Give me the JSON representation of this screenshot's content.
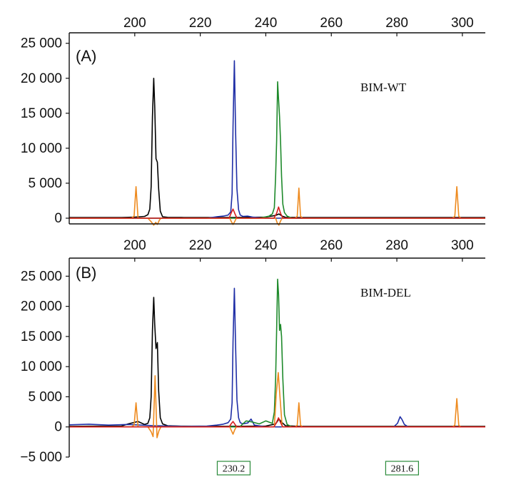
{
  "chart_data": [
    {
      "type": "line",
      "panel_label": "(A)",
      "sample_label": "BIM-WT",
      "xlabel": "",
      "ylabel": "",
      "xlim": [
        180,
        307
      ],
      "ylim": [
        0,
        26500
      ],
      "x_ticks": [
        200,
        220,
        240,
        260,
        280,
        300
      ],
      "x_tick_labels": [
        "200",
        "220",
        "240",
        "260",
        "280",
        "300"
      ],
      "y_ticks": [
        0,
        5000,
        10000,
        15000,
        20000,
        25000
      ],
      "y_tick_labels": [
        "0",
        "5 000",
        "10 000",
        "15 000",
        "20 000",
        "25 000"
      ],
      "grid": false,
      "series": [
        {
          "color": "#000000",
          "x": [
            180,
            196,
            200,
            203,
            204,
            204.6,
            205,
            205.4,
            205.8,
            206.1,
            206.5,
            206.9,
            207.3,
            207.8,
            208.5,
            210,
            215,
            230,
            240,
            243,
            244,
            245,
            246,
            250,
            307
          ],
          "y": [
            100,
            100,
            150,
            250,
            500,
            1300,
            4500,
            14500,
            20000,
            16000,
            8500,
            8000,
            4200,
            1000,
            200,
            120,
            100,
            100,
            150,
            400,
            600,
            300,
            120,
            100,
            100
          ]
        },
        {
          "color": "#1f2ea6",
          "x": [
            180,
            222,
            225,
            227,
            228.5,
            229.3,
            229.7,
            230,
            230.4,
            230.8,
            231.2,
            231.7,
            232.2,
            233,
            234.5,
            236,
            240,
            307
          ],
          "y": [
            0,
            0,
            200,
            300,
            450,
            900,
            3500,
            13000,
            22500,
            12000,
            4200,
            1200,
            450,
            250,
            300,
            150,
            0,
            0
          ]
        },
        {
          "color": "#1e8a2b",
          "x": [
            180,
            238,
            241,
            242,
            242.6,
            243,
            243.3,
            243.6,
            243.9,
            244.2,
            244.5,
            244.8,
            245.2,
            245.7,
            246.5,
            248,
            307
          ],
          "y": [
            0,
            0,
            300,
            600,
            1500,
            6000,
            11000,
            19500,
            17000,
            14500,
            11000,
            6000,
            2000,
            800,
            300,
            0,
            0
          ]
        },
        {
          "color": "#ee8a1e",
          "x": [
            180,
            199,
            199.8,
            200.4,
            201,
            204,
            205,
            205.8,
            206.4,
            206.9,
            207.5,
            208,
            229,
            229.5,
            230,
            230.5,
            231,
            243,
            243.5,
            244,
            244.5,
            245,
            249,
            249.6,
            250.1,
            250.6,
            251.2,
            297,
            297.7,
            298.3,
            298.9,
            299.5,
            307
          ],
          "y": [
            0,
            0,
            300,
            4500,
            0,
            0,
            -500,
            -1000,
            -600,
            -900,
            -300,
            0,
            0,
            -500,
            -900,
            -500,
            0,
            0,
            -700,
            -1000,
            -400,
            0,
            0,
            300,
            4300,
            300,
            0,
            0,
            300,
            4500,
            300,
            0,
            0
          ]
        },
        {
          "color": "#d81e1e",
          "x": [
            180,
            228.8,
            229.4,
            230,
            230.6,
            231.2,
            242.5,
            243.3,
            243.9,
            244.5,
            245.2,
            307
          ],
          "y": [
            0,
            0,
            700,
            1300,
            600,
            0,
            0,
            700,
            1600,
            700,
            0,
            0
          ]
        }
      ]
    },
    {
      "type": "line",
      "panel_label": "(B)",
      "sample_label": "BIM-DEL",
      "xlabel": "",
      "ylabel": "",
      "xlim": [
        180,
        307
      ],
      "ylim": [
        -5000,
        28000
      ],
      "x_ticks": [
        200,
        220,
        240,
        260,
        280,
        300
      ],
      "x_tick_labels": [
        "200",
        "220",
        "240",
        "260",
        "280",
        "300"
      ],
      "y_ticks": [
        -5000,
        0,
        5000,
        10000,
        15000,
        20000,
        25000
      ],
      "y_tick_labels": [
        "−5 000",
        "0",
        "5 000",
        "10 000",
        "15 000",
        "20 000",
        "25 000"
      ],
      "grid": false,
      "size_labels": [
        "230.2",
        "281.6"
      ],
      "size_label_x": [
        230.2,
        281.6
      ],
      "series": [
        {
          "color": "#000000",
          "x": [
            180,
            196,
            198,
            201,
            203,
            204,
            204.6,
            205,
            205.4,
            205.8,
            206.1,
            206.5,
            206.9,
            207.3,
            207.8,
            208.5,
            210,
            214,
            230,
            240,
            243,
            244,
            245,
            246,
            250,
            307
          ],
          "y": [
            100,
            150,
            500,
            900,
            400,
            600,
            1500,
            5000,
            16000,
            21500,
            17000,
            13000,
            14000,
            6000,
            1500,
            500,
            200,
            120,
            100,
            150,
            500,
            1300,
            700,
            200,
            100,
            100
          ]
        },
        {
          "color": "#1f2ea6",
          "x": [
            180,
            186,
            192,
            198,
            206,
            215,
            222,
            225,
            227,
            228.5,
            229.3,
            229.7,
            230,
            230.4,
            230.8,
            231.2,
            231.7,
            232.2,
            233,
            234.5,
            235.5,
            236.5,
            240,
            279,
            280.2,
            281,
            281.6,
            282.3,
            283.5,
            307
          ],
          "y": [
            350,
            450,
            300,
            400,
            200,
            100,
            150,
            300,
            450,
            700,
            1300,
            4000,
            14000,
            23000,
            13000,
            4500,
            1500,
            700,
            500,
            650,
            1300,
            300,
            0,
            0,
            600,
            1700,
            1200,
            400,
            0,
            0
          ]
        },
        {
          "color": "#1e8a2b",
          "x": [
            180,
            232,
            234,
            236,
            238,
            240,
            242,
            242.6,
            243,
            243.3,
            243.6,
            243.9,
            244.2,
            244.5,
            244.8,
            245.2,
            245.7,
            246.5,
            248,
            307
          ],
          "y": [
            0,
            0,
            1000,
            800,
            500,
            1000,
            600,
            2500,
            8000,
            16000,
            24500,
            22000,
            16000,
            17000,
            15000,
            8000,
            2000,
            400,
            0,
            0
          ]
        },
        {
          "color": "#ee8a1e",
          "x": [
            180,
            199,
            199.8,
            200.4,
            201,
            204,
            205,
            205.6,
            206.2,
            206.8,
            207.4,
            208,
            229,
            229.5,
            230,
            230.5,
            231,
            242.6,
            243.2,
            243.8,
            244.4,
            245,
            249,
            249.6,
            250.1,
            250.6,
            251.2,
            297,
            297.7,
            298.3,
            298.9,
            299.5,
            307
          ],
          "y": [
            0,
            0,
            300,
            4000,
            0,
            0,
            -800,
            -1600,
            8500,
            -1800,
            -600,
            0,
            0,
            -600,
            -1200,
            -500,
            0,
            0,
            5500,
            9000,
            4500,
            0,
            0,
            300,
            4000,
            300,
            0,
            0,
            300,
            4700,
            300,
            0,
            0
          ]
        },
        {
          "color": "#d81e1e",
          "x": [
            180,
            228.8,
            229.4,
            230,
            230.6,
            231.2,
            242.5,
            243.3,
            243.9,
            244.5,
            245.2,
            307
          ],
          "y": [
            0,
            0,
            500,
            900,
            400,
            0,
            0,
            800,
            1500,
            700,
            0,
            0
          ]
        }
      ]
    }
  ]
}
